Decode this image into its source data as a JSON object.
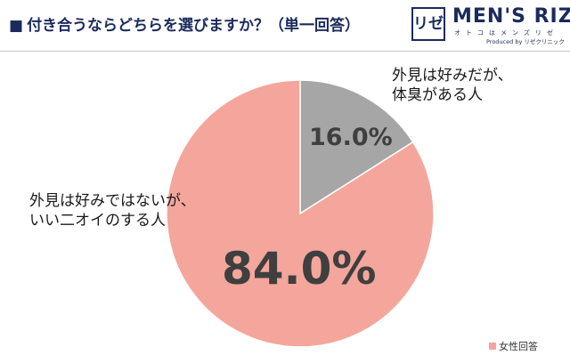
{
  "header": {
    "title_marker": "■",
    "title": "付き合うならどちらを選びますか？（単一回答）"
  },
  "logo": {
    "mark": "リゼ",
    "name": "MEN'S RIZE",
    "kana": "オトコはメンズリゼ",
    "produced": "Produced by リゼクリニック"
  },
  "colors": {
    "title": "#1b2a5c",
    "slice_large": "#f4a69c",
    "slice_small": "#a6a6a6"
  },
  "chart_data": {
    "type": "pie",
    "categories": [
      "外見は好みだが、体臭がある人",
      "外見は好みではないが、いい匂いのする人"
    ],
    "values": [
      16.0,
      84.0
    ],
    "slice_labels": [
      "16.0%",
      "84.0%"
    ],
    "annotations": [
      {
        "lines": [
          "外見は好みだが、",
          "体臭がある人"
        ]
      },
      {
        "lines": [
          "外見は好みではないが、",
          "いい二オイのする人"
        ]
      }
    ],
    "legend": [
      "女性回答"
    ],
    "legend_position": "bottom-right",
    "start_angle": "top",
    "direction": "clockwise"
  }
}
